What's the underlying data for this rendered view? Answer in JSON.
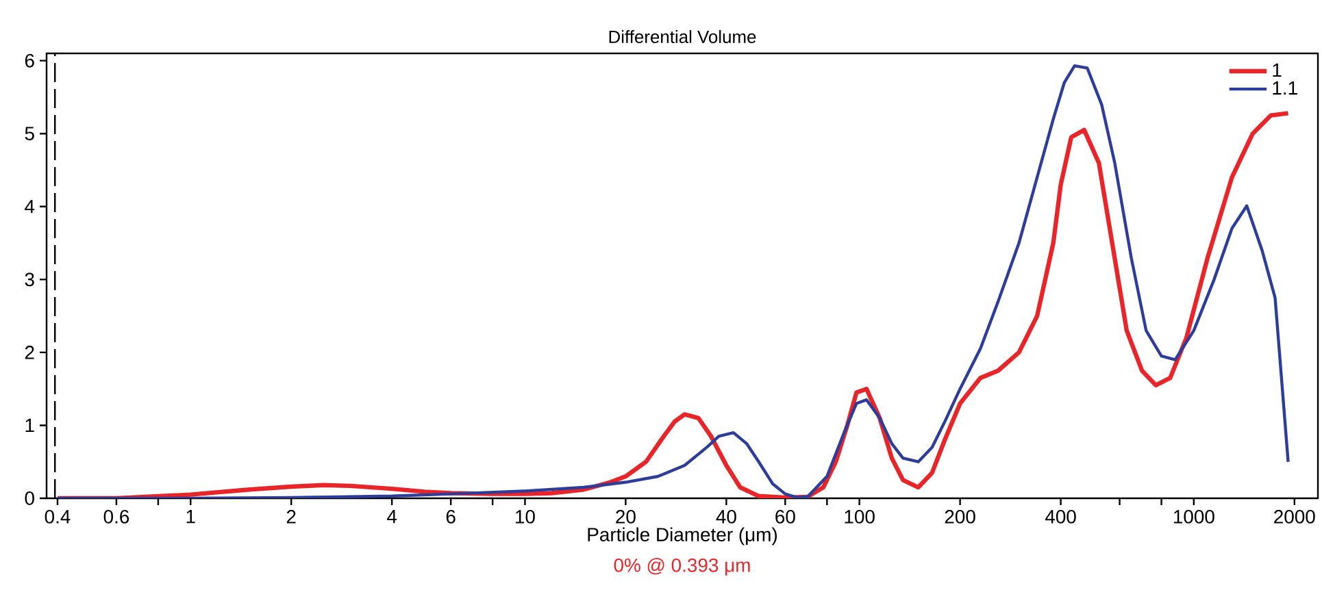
{
  "chart_data": {
    "type": "line",
    "title": "Differential Volume",
    "xlabel": "Particle Diameter (μm)",
    "log": "x",
    "xlim": [
      0.371,
      2350
    ],
    "ylim": [
      0,
      6.1
    ],
    "xticks": [
      0.4,
      0.6,
      {
        "value": 0.8,
        "label": null
      },
      1,
      2,
      4,
      6,
      {
        "value": 8,
        "label": null
      },
      10,
      20,
      40,
      60,
      {
        "value": 80,
        "label": null
      },
      100,
      200,
      400,
      {
        "value": 600,
        "label": null
      },
      {
        "value": 800,
        "label": null
      },
      1000,
      2000
    ],
    "yticks": [
      0,
      1,
      2,
      3,
      4,
      5,
      6
    ],
    "legend": "top right",
    "line_style": "solid",
    "marker": "none",
    "ref_lines": [
      {
        "axis": "x",
        "value": 0.393,
        "line_style": "dashed",
        "color": "#000000"
      }
    ],
    "annotations": [
      "0% @ 0.393 μm"
    ],
    "series": [
      {
        "name": "1",
        "color": "#e8262a",
        "x": [
          0.4,
          0.6,
          1,
          1.5,
          2,
          2.5,
          3,
          4,
          5,
          6,
          8,
          10,
          12,
          15,
          18,
          20,
          23,
          26,
          28,
          30,
          33,
          36,
          40,
          44,
          50,
          60,
          70,
          78,
          85,
          92,
          98,
          105,
          115,
          125,
          135,
          150,
          165,
          180,
          200,
          230,
          260,
          300,
          340,
          380,
          400,
          430,
          470,
          520,
          570,
          630,
          700,
          770,
          850,
          950,
          1100,
          1300,
          1500,
          1700,
          1915
        ],
        "values": [
          0,
          0,
          0.05,
          0.12,
          0.16,
          0.18,
          0.17,
          0.13,
          0.09,
          0.07,
          0.06,
          0.06,
          0.07,
          0.12,
          0.22,
          0.3,
          0.5,
          0.85,
          1.05,
          1.15,
          1.1,
          0.85,
          0.45,
          0.15,
          0.03,
          0.01,
          0.02,
          0.15,
          0.5,
          1.0,
          1.45,
          1.5,
          1.1,
          0.55,
          0.25,
          0.15,
          0.35,
          0.8,
          1.3,
          1.65,
          1.75,
          2.0,
          2.5,
          3.5,
          4.3,
          4.95,
          5.05,
          4.6,
          3.5,
          2.3,
          1.75,
          1.55,
          1.65,
          2.2,
          3.3,
          4.4,
          5.0,
          5.25,
          5.28
        ]
      },
      {
        "name": "1.1",
        "color": "#2e3d9a",
        "x": [
          0.4,
          1,
          2,
          4,
          6,
          10,
          15,
          20,
          25,
          30,
          35,
          38,
          42,
          46,
          50,
          55,
          60,
          65,
          70,
          80,
          90,
          98,
          105,
          115,
          125,
          135,
          150,
          165,
          180,
          200,
          230,
          260,
          300,
          340,
          380,
          410,
          440,
          480,
          530,
          580,
          650,
          720,
          800,
          880,
          1000,
          1150,
          1300,
          1440,
          1600,
          1750,
          1915
        ],
        "values": [
          0,
          0,
          0.01,
          0.03,
          0.06,
          0.1,
          0.15,
          0.22,
          0.3,
          0.45,
          0.7,
          0.85,
          0.9,
          0.75,
          0.5,
          0.2,
          0.06,
          0.01,
          0.02,
          0.3,
          0.9,
          1.3,
          1.35,
          1.1,
          0.75,
          0.55,
          0.5,
          0.7,
          1.05,
          1.5,
          2.05,
          2.7,
          3.5,
          4.4,
          5.2,
          5.7,
          5.93,
          5.9,
          5.4,
          4.6,
          3.3,
          2.3,
          1.95,
          1.9,
          2.3,
          3.0,
          3.7,
          4.01,
          3.4,
          2.75,
          0.5
        ]
      }
    ]
  }
}
